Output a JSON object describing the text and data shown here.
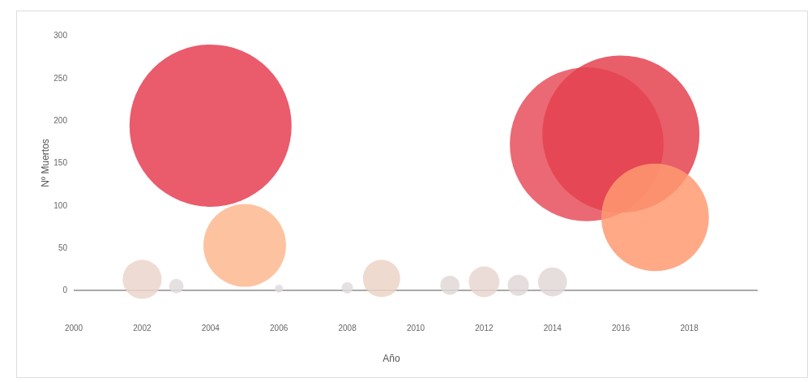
{
  "chart_data": {
    "type": "bubble",
    "xlabel": "Año",
    "ylabel": "Nº Muertos",
    "x": [
      2002,
      2003,
      2004,
      2005,
      2006,
      2008,
      2009,
      2011,
      2012,
      2013,
      2014,
      2015,
      2016,
      2017
    ],
    "values": [
      13,
      5,
      194,
      53,
      2,
      3,
      14,
      6,
      10,
      6,
      10,
      172,
      184,
      86
    ],
    "sizes": [
      0.058,
      0.008,
      1,
      0.26,
      0.0025,
      0.005,
      0.053,
      0.014,
      0.036,
      0.017,
      0.032,
      0.9,
      0.94,
      0.44
    ],
    "colors": [
      "#ebd6cc",
      "#e2dcdc",
      "#e63e52",
      "#fdb990",
      "#e2dcdc",
      "#e2dcdc",
      "#ebd3c6",
      "#e2d8d6",
      "#e9d6d0",
      "#e2d8d6",
      "#e2d8d6",
      "#e84f5c",
      "#e4424f",
      "#ff9a72"
    ],
    "xlim": [
      2000,
      2020
    ],
    "xticks": [
      2000,
      2002,
      2004,
      2006,
      2008,
      2010,
      2012,
      2014,
      2016,
      2018
    ],
    "ylim": [
      0,
      300
    ],
    "yticks": [
      0,
      50,
      100,
      150,
      200,
      250,
      300
    ],
    "grid": false
  }
}
